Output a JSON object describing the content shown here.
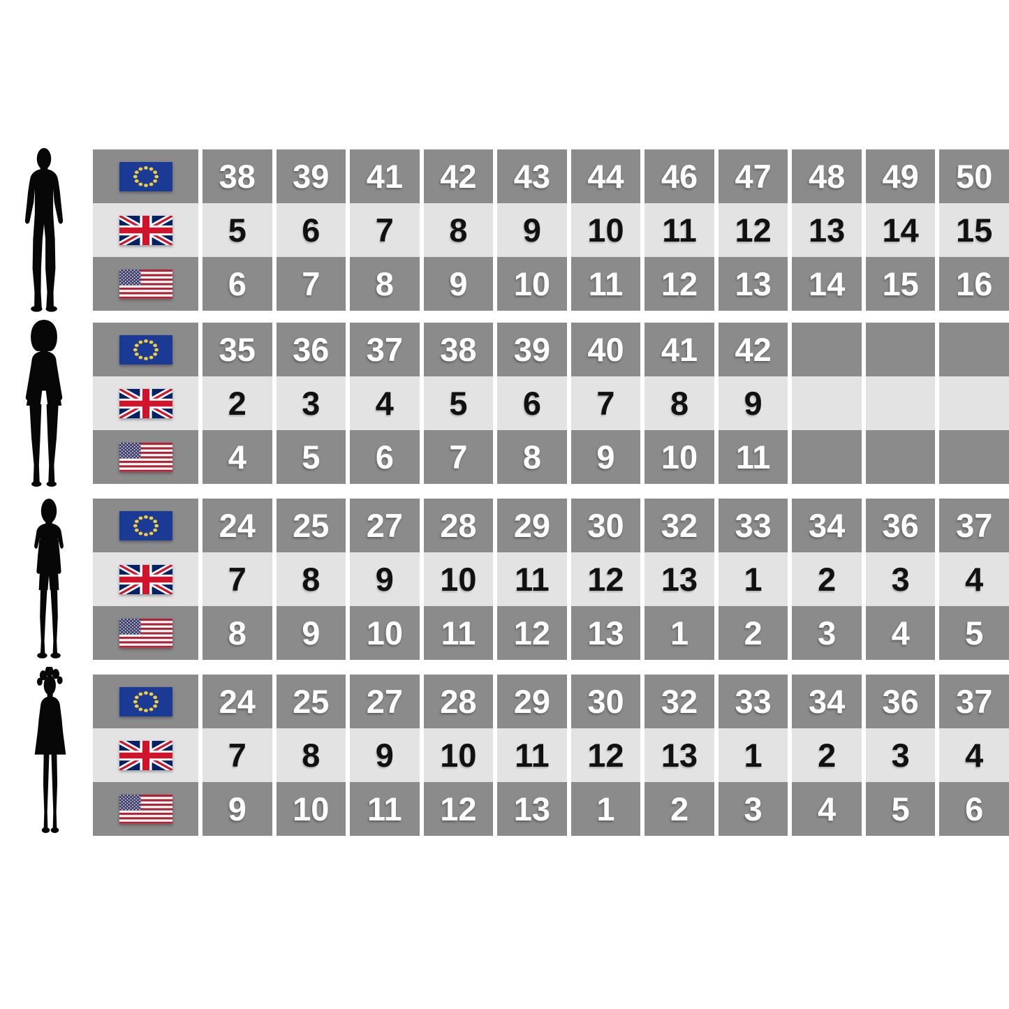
{
  "chart_data": {
    "type": "table",
    "description": "Shoe size conversion chart between EU, UK and US sizes for men, women, boys and girls",
    "legend_icons": [
      "eu-flag-icon",
      "uk-flag-icon",
      "us-flag-icon"
    ],
    "colors": {
      "cell_dark": "#8b8b8b",
      "cell_light": "#e3e3e3",
      "number_on_dark": "#ffffff",
      "number_on_light": "#111111",
      "eu_flag_blue": "#1b3a96",
      "eu_star_gold": "#f0ce3a",
      "uk_blue": "#012169",
      "uk_red": "#cf142b",
      "us_red": "#b22234",
      "us_canton_blue": "#3c3b6e",
      "silhouette_black": "#070707"
    },
    "sections": [
      {
        "person": "man",
        "person_icon": "man-silhouette-icon",
        "rows": [
          {
            "region": "EU",
            "flag_icon": "eu-flag-icon",
            "values": [
              "38",
              "39",
              "41",
              "42",
              "43",
              "44",
              "46",
              "47",
              "48",
              "49",
              "50"
            ]
          },
          {
            "region": "UK",
            "flag_icon": "uk-flag-icon",
            "values": [
              "5",
              "6",
              "7",
              "8",
              "9",
              "10",
              "11",
              "12",
              "13",
              "14",
              "15"
            ]
          },
          {
            "region": "US",
            "flag_icon": "us-flag-icon",
            "values": [
              "6",
              "7",
              "8",
              "9",
              "10",
              "11",
              "12",
              "13",
              "14",
              "15",
              "16"
            ]
          }
        ]
      },
      {
        "person": "woman",
        "person_icon": "woman-silhouette-icon",
        "rows": [
          {
            "region": "EU",
            "flag_icon": "eu-flag-icon",
            "values": [
              "35",
              "36",
              "37",
              "38",
              "39",
              "40",
              "41",
              "42",
              "",
              "",
              ""
            ]
          },
          {
            "region": "UK",
            "flag_icon": "uk-flag-icon",
            "values": [
              "2",
              "3",
              "4",
              "5",
              "6",
              "7",
              "8",
              "9",
              "",
              "",
              ""
            ]
          },
          {
            "region": "US",
            "flag_icon": "us-flag-icon",
            "values": [
              "4",
              "5",
              "6",
              "7",
              "8",
              "9",
              "10",
              "11",
              "",
              "",
              ""
            ]
          }
        ]
      },
      {
        "person": "boy",
        "person_icon": "boy-silhouette-icon",
        "rows": [
          {
            "region": "EU",
            "flag_icon": "eu-flag-icon",
            "values": [
              "24",
              "25",
              "27",
              "28",
              "29",
              "30",
              "32",
              "33",
              "34",
              "36",
              "37"
            ]
          },
          {
            "region": "UK",
            "flag_icon": "uk-flag-icon",
            "values": [
              "7",
              "8",
              "9",
              "10",
              "11",
              "12",
              "13",
              "1",
              "2",
              "3",
              "4"
            ]
          },
          {
            "region": "US",
            "flag_icon": "us-flag-icon",
            "values": [
              "8",
              "9",
              "10",
              "11",
              "12",
              "13",
              "1",
              "2",
              "3",
              "4",
              "5"
            ]
          }
        ]
      },
      {
        "person": "girl",
        "person_icon": "girl-silhouette-icon",
        "rows": [
          {
            "region": "EU",
            "flag_icon": "eu-flag-icon",
            "values": [
              "24",
              "25",
              "27",
              "28",
              "29",
              "30",
              "32",
              "33",
              "34",
              "36",
              "37"
            ]
          },
          {
            "region": "UK",
            "flag_icon": "uk-flag-icon",
            "values": [
              "7",
              "8",
              "9",
              "10",
              "11",
              "12",
              "13",
              "1",
              "2",
              "3",
              "4"
            ]
          },
          {
            "region": "US",
            "flag_icon": "us-flag-icon",
            "values": [
              "9",
              "10",
              "11",
              "12",
              "13",
              "1",
              "2",
              "3",
              "4",
              "5",
              "6"
            ]
          }
        ]
      }
    ]
  }
}
